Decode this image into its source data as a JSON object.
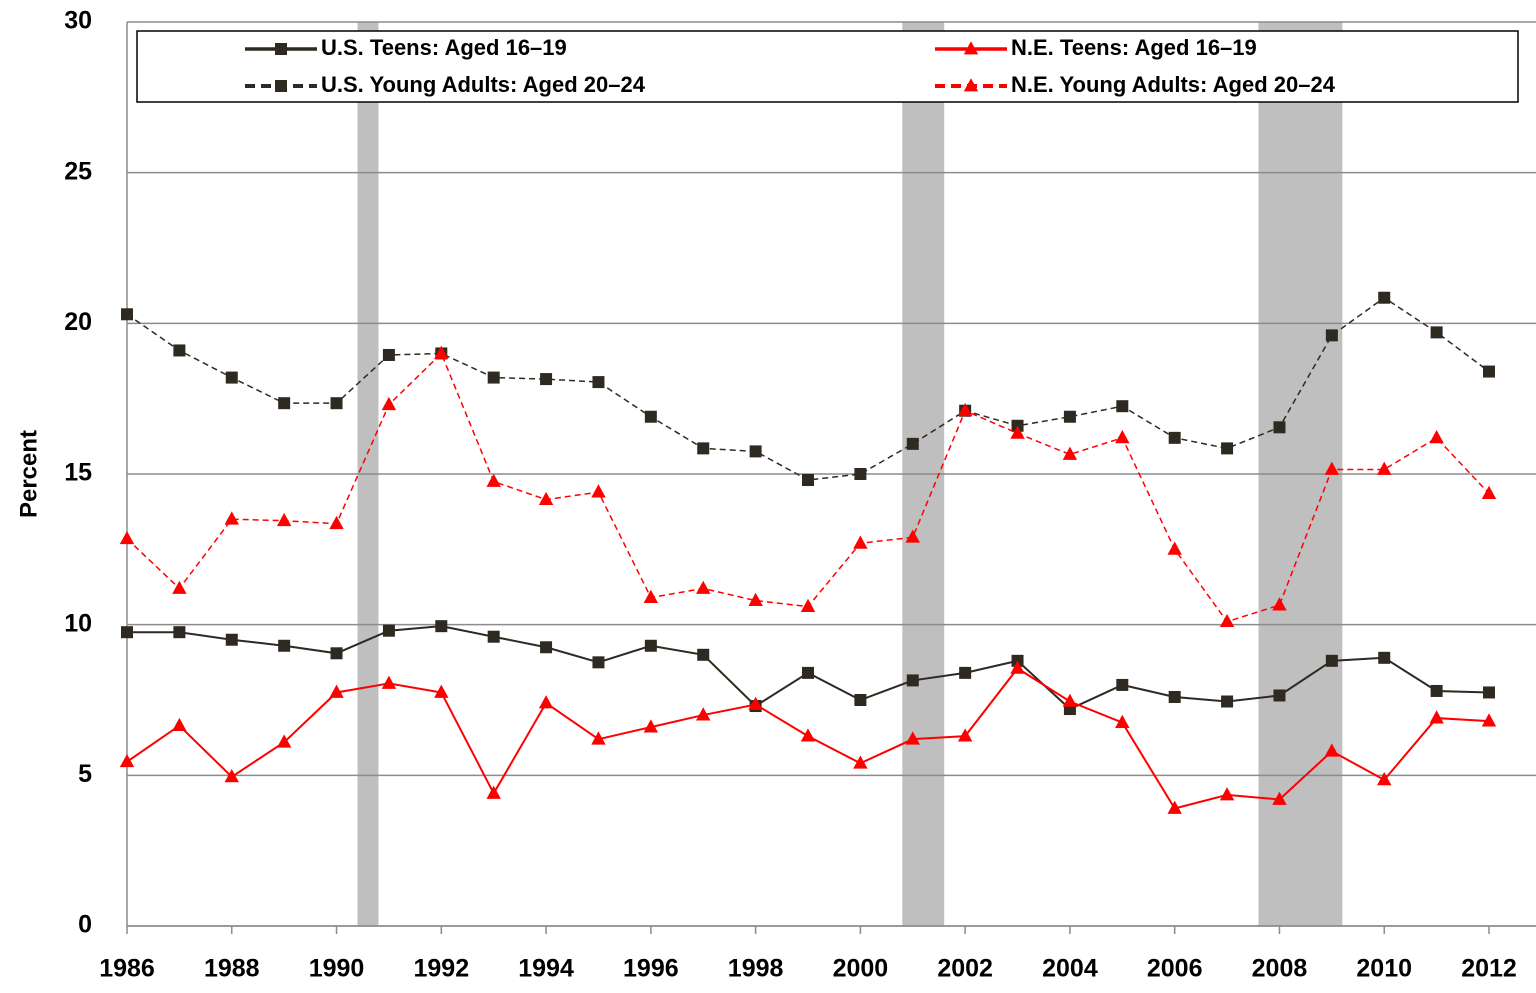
{
  "chart_data": {
    "type": "line",
    "y_label": "Percent",
    "x": [
      1986,
      1987,
      1988,
      1989,
      1990,
      1991,
      1992,
      1993,
      1994,
      1995,
      1996,
      1997,
      1998,
      1999,
      2000,
      2001,
      2002,
      2003,
      2004,
      2005,
      2006,
      2007,
      2008,
      2009,
      2010,
      2011,
      2012
    ],
    "xlim": [
      1986,
      2012
    ],
    "xticks": [
      1986,
      1988,
      1990,
      1992,
      1994,
      1996,
      1998,
      2000,
      2002,
      2004,
      2006,
      2008,
      2010,
      2012
    ],
    "ylim": [
      0,
      30
    ],
    "yticks": [
      0,
      5,
      10,
      15,
      20,
      25,
      30
    ],
    "grid": true,
    "shaded_periods": [
      [
        1990.4,
        1990.8
      ],
      [
        2000.8,
        2001.6
      ],
      [
        2007.6,
        2009.2
      ]
    ],
    "shade_color": "#bfbfbf",
    "series": [
      {
        "name": "U.S. Teens: Aged 16–19",
        "color": "#2e2a22",
        "dash": false,
        "marker": "square",
        "values": [
          9.75,
          9.75,
          9.5,
          9.3,
          9.05,
          9.8,
          9.95,
          9.6,
          9.25,
          8.75,
          9.3,
          9.0,
          7.3,
          8.4,
          7.5,
          8.15,
          8.4,
          8.8,
          7.2,
          8.0,
          7.6,
          7.45,
          7.65,
          8.8,
          8.9,
          7.8,
          7.75
        ]
      },
      {
        "name": "N.E. Teens: Aged 16–19",
        "color": "#ff0000",
        "dash": false,
        "marker": "triangle",
        "values": [
          5.45,
          6.65,
          4.95,
          6.1,
          7.75,
          8.05,
          7.75,
          4.4,
          7.4,
          6.2,
          6.6,
          7.0,
          7.35,
          6.3,
          5.4,
          6.2,
          6.3,
          8.55,
          7.45,
          6.75,
          3.9,
          4.35,
          4.2,
          5.8,
          4.85,
          6.9,
          6.8
        ]
      },
      {
        "name": "U.S. Young Adults: Aged 20–24",
        "color": "#2e2a22",
        "dash": true,
        "marker": "square",
        "values": [
          20.3,
          19.1,
          18.2,
          17.35,
          17.35,
          18.95,
          19.0,
          18.2,
          18.15,
          18.05,
          16.9,
          15.85,
          15.75,
          14.8,
          15.0,
          16.0,
          17.1,
          16.6,
          16.9,
          17.25,
          16.2,
          15.85,
          16.55,
          19.6,
          20.85,
          19.7,
          18.4
        ]
      },
      {
        "name": "N.E. Young Adults: Aged 20–24",
        "color": "#ff0000",
        "dash": true,
        "marker": "triangle",
        "values": [
          12.85,
          11.2,
          13.5,
          13.45,
          13.35,
          17.3,
          19.0,
          14.75,
          14.15,
          14.4,
          10.9,
          11.2,
          10.8,
          10.6,
          12.7,
          12.9,
          17.1,
          16.35,
          15.65,
          16.2,
          12.5,
          10.1,
          10.65,
          15.15,
          15.15,
          16.2,
          14.35
        ]
      }
    ]
  }
}
